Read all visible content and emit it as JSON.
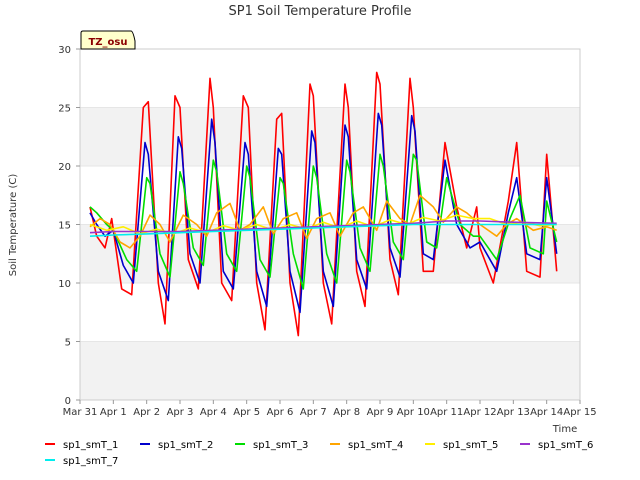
{
  "chart_data": {
    "type": "line",
    "title": "SP1 Soil Temperature Profile",
    "badge": "TZ_osu",
    "xlabel": "Time",
    "ylabel": "Soil Temperature (C)",
    "ylim": [
      0,
      30
    ],
    "yticks": [
      0,
      5,
      10,
      15,
      20,
      25,
      30
    ],
    "xlim": [
      0,
      15
    ],
    "xticks": [
      {
        "pos": 0,
        "label": "Mar 31"
      },
      {
        "pos": 1,
        "label": "Apr 1"
      },
      {
        "pos": 2,
        "label": "Apr 2"
      },
      {
        "pos": 3,
        "label": "Apr 3"
      },
      {
        "pos": 4,
        "label": "Apr 4"
      },
      {
        "pos": 5,
        "label": "Apr 5"
      },
      {
        "pos": 6,
        "label": "Apr 6"
      },
      {
        "pos": 7,
        "label": "Apr 7"
      },
      {
        "pos": 8,
        "label": "Apr 8"
      },
      {
        "pos": 9,
        "label": "Apr 9"
      },
      {
        "pos": 10,
        "label": "Apr 10"
      },
      {
        "pos": 11,
        "label": "Apr 11"
      },
      {
        "pos": 12,
        "label": "Apr 12"
      },
      {
        "pos": 13,
        "label": "Apr 13"
      },
      {
        "pos": 14,
        "label": "Apr 14"
      },
      {
        "pos": 15,
        "label": "Apr 15"
      }
    ],
    "x_unit": "days since Mar 31 00:00",
    "grid": "horizontal bands",
    "legend_position": "bottom",
    "series": [
      {
        "name": "sp1_smT_1",
        "color": "#ff0000",
        "x": [
          0.3,
          0.5,
          0.75,
          0.95,
          1.25,
          1.55,
          1.9,
          2.05,
          2.35,
          2.55,
          2.85,
          3.0,
          3.25,
          3.55,
          3.9,
          4.0,
          4.25,
          4.55,
          4.9,
          5.05,
          5.3,
          5.55,
          5.9,
          6.05,
          6.3,
          6.55,
          6.9,
          7.0,
          7.3,
          7.55,
          7.95,
          8.05,
          8.3,
          8.55,
          8.9,
          9.0,
          9.3,
          9.55,
          9.9,
          10.0,
          10.3,
          10.6,
          10.95,
          11.3,
          11.6,
          11.9,
          12.0,
          12.4,
          12.85,
          13.1,
          13.4,
          13.8,
          14.0,
          14.3
        ],
        "y": [
          16.5,
          14.0,
          13.0,
          15.5,
          9.5,
          9.0,
          25.0,
          25.5,
          10.0,
          6.5,
          26.0,
          25.0,
          12.0,
          9.5,
          27.5,
          25.0,
          10.0,
          8.5,
          26.0,
          25.0,
          10.0,
          6.0,
          24.0,
          24.5,
          10.0,
          5.5,
          27.0,
          26.0,
          10.0,
          6.5,
          27.0,
          25.0,
          11.0,
          8.0,
          28.0,
          27.0,
          12.0,
          9.0,
          27.5,
          25.0,
          11.0,
          11.0,
          22.0,
          16.5,
          13.0,
          16.5,
          13.0,
          10.0,
          17.0,
          22.0,
          11.0,
          10.5,
          21.0,
          11.0
        ]
      },
      {
        "name": "sp1_smT_2",
        "color": "#0000cc",
        "x": [
          0.3,
          0.5,
          0.75,
          1.0,
          1.3,
          1.6,
          1.95,
          2.05,
          2.35,
          2.65,
          2.95,
          3.05,
          3.3,
          3.6,
          3.95,
          4.05,
          4.3,
          4.6,
          4.95,
          5.05,
          5.3,
          5.6,
          5.95,
          6.05,
          6.3,
          6.6,
          6.95,
          7.05,
          7.3,
          7.6,
          7.95,
          8.05,
          8.3,
          8.6,
          8.95,
          9.05,
          9.3,
          9.6,
          9.95,
          10.05,
          10.3,
          10.6,
          10.95,
          11.3,
          11.7,
          12.0,
          12.5,
          12.85,
          13.1,
          13.4,
          13.8,
          14.0,
          14.3
        ],
        "y": [
          16.0,
          15.0,
          14.0,
          14.5,
          11.5,
          10.0,
          22.0,
          21.0,
          11.0,
          8.5,
          22.5,
          21.5,
          12.5,
          10.0,
          24.0,
          22.0,
          11.0,
          9.5,
          22.0,
          21.0,
          11.0,
          8.0,
          21.5,
          21.0,
          11.0,
          7.5,
          23.0,
          22.0,
          11.0,
          8.0,
          23.5,
          22.5,
          12.0,
          9.5,
          24.5,
          23.5,
          13.0,
          10.5,
          24.3,
          23.0,
          12.5,
          12.0,
          20.5,
          15.0,
          13.0,
          13.5,
          11.0,
          16.0,
          19.0,
          12.5,
          12.0,
          19.0,
          12.5
        ]
      },
      {
        "name": "sp1_smT_3",
        "color": "#00dd00",
        "x": [
          0.3,
          0.5,
          0.8,
          1.0,
          1.4,
          1.7,
          2.0,
          2.1,
          2.4,
          2.7,
          3.0,
          3.1,
          3.4,
          3.7,
          4.0,
          4.1,
          4.4,
          4.7,
          5.0,
          5.1,
          5.4,
          5.7,
          6.0,
          6.1,
          6.4,
          6.7,
          7.0,
          7.1,
          7.4,
          7.7,
          8.0,
          8.1,
          8.4,
          8.7,
          9.0,
          9.1,
          9.4,
          9.7,
          10.0,
          10.1,
          10.4,
          10.7,
          11.0,
          11.4,
          11.8,
          12.0,
          12.5,
          12.9,
          13.2,
          13.5,
          13.9,
          14.0,
          14.3
        ],
        "y": [
          16.5,
          16.0,
          15.0,
          14.5,
          12.0,
          11.0,
          19.0,
          18.5,
          12.5,
          10.5,
          19.5,
          18.5,
          13.0,
          11.5,
          20.5,
          19.5,
          12.5,
          11.0,
          20.0,
          19.0,
          12.0,
          10.5,
          19.0,
          18.5,
          12.5,
          9.5,
          20.0,
          19.0,
          12.5,
          10.0,
          20.5,
          19.5,
          13.0,
          11.0,
          21.0,
          20.0,
          13.5,
          12.0,
          21.0,
          20.5,
          13.5,
          13.0,
          19.0,
          15.0,
          14.0,
          14.0,
          12.0,
          15.5,
          17.5,
          13.0,
          12.5,
          17.0,
          13.5
        ]
      },
      {
        "name": "sp1_smT_4",
        "color": "#ffa500",
        "x": [
          0.3,
          0.6,
          0.9,
          1.2,
          1.5,
          1.8,
          2.1,
          2.4,
          2.7,
          3.1,
          3.5,
          3.8,
          4.1,
          4.5,
          4.8,
          5.1,
          5.5,
          5.8,
          6.1,
          6.5,
          6.8,
          7.1,
          7.5,
          7.8,
          8.2,
          8.5,
          8.9,
          9.2,
          9.6,
          9.9,
          10.2,
          10.6,
          10.9,
          11.3,
          11.6,
          12.0,
          12.5,
          12.8,
          13.1,
          13.6,
          14.0,
          14.3
        ],
        "y": [
          14.8,
          15.5,
          15.0,
          13.5,
          13.0,
          14.0,
          15.8,
          15.0,
          13.5,
          15.8,
          15.0,
          14.0,
          16.0,
          16.8,
          14.5,
          15.0,
          16.5,
          14.2,
          15.5,
          16.0,
          13.8,
          15.5,
          16.0,
          14.0,
          16.0,
          16.5,
          14.5,
          17.0,
          15.5,
          15.0,
          17.5,
          16.5,
          15.2,
          16.5,
          16.0,
          15.0,
          14.0,
          15.0,
          15.5,
          14.5,
          14.8,
          14.5
        ]
      },
      {
        "name": "sp1_smT_5",
        "color": "#ffee00",
        "x": [
          0.3,
          0.8,
          1.3,
          1.8,
          2.3,
          2.8,
          3.3,
          3.8,
          4.3,
          4.8,
          5.3,
          5.8,
          6.3,
          6.8,
          7.3,
          7.8,
          8.3,
          8.8,
          9.3,
          9.8,
          10.3,
          10.8,
          11.3,
          11.8,
          12.3,
          12.8,
          13.3,
          13.8,
          14.3
        ],
        "y": [
          15.0,
          14.5,
          14.8,
          14.2,
          14.6,
          14.2,
          14.7,
          14.3,
          14.9,
          14.5,
          15.0,
          14.5,
          15.0,
          14.6,
          15.2,
          14.7,
          15.3,
          14.8,
          15.4,
          15.0,
          15.6,
          15.3,
          15.8,
          15.5,
          15.5,
          15.0,
          15.2,
          14.9,
          15.0
        ]
      },
      {
        "name": "sp1_smT_6",
        "color": "#9933cc",
        "x": [
          0.3,
          1.0,
          2.0,
          3.0,
          4.0,
          5.0,
          6.0,
          7.0,
          8.0,
          9.0,
          10.0,
          11.0,
          12.0,
          13.0,
          14.3
        ],
        "y": [
          14.3,
          14.4,
          14.4,
          14.4,
          14.5,
          14.6,
          14.7,
          14.8,
          14.9,
          15.0,
          15.1,
          15.3,
          15.3,
          15.2,
          15.1
        ]
      },
      {
        "name": "sp1_smT_7",
        "color": "#00eeee",
        "x": [
          0.3,
          1.0,
          2.0,
          3.0,
          4.0,
          5.0,
          6.0,
          7.0,
          8.0,
          9.0,
          10.0,
          11.0,
          12.0,
          13.0,
          14.3
        ],
        "y": [
          14.0,
          14.1,
          14.2,
          14.3,
          14.4,
          14.5,
          14.6,
          14.7,
          14.8,
          14.9,
          15.0,
          15.0,
          15.0,
          15.0,
          15.0
        ]
      }
    ]
  }
}
